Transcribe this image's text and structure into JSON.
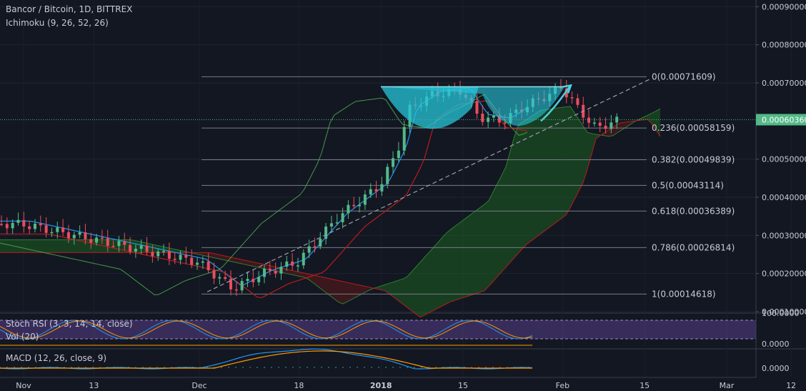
{
  "header": {
    "title": "Bancor / Bitcoin, 1D, BITTREX",
    "indicator": "Ichimoku (9, 26, 52, 26)"
  },
  "panes": {
    "stoch_label": "Stoch RSI (3, 3, 14, 14, close)",
    "vol_label": "Vol (20)",
    "macd_label": "MACD (12, 26, close, 9)"
  },
  "colors": {
    "background": "#131722",
    "up": "#53b987",
    "down": "#eb4d5c",
    "tenkan": "#2196f3",
    "kijun": "#b71c1c",
    "chikou": "#4caf50",
    "cloud_bull": "#1b5e20",
    "cloud_bear": "#5d1a1a",
    "cup": "#26c6da",
    "fib_line": "#787b86",
    "stoch_band": "#7e57c2"
  },
  "chart_data": [
    {
      "type": "candlestick",
      "title": "Bancor / Bitcoin, 1D, BITTREX",
      "y_axis": {
        "ticks": [
          "0.00090000",
          "0.00080000",
          "0.00070000",
          "0.00050000",
          "0.00040000",
          "0.00030000",
          "0.00020000",
          "0.00010000"
        ],
        "tick_values": [
          0.0009,
          0.0008,
          0.0007,
          0.0005,
          0.0004,
          0.0003,
          0.0002,
          0.0001
        ],
        "range": [
          0.0001,
          0.00091
        ],
        "current_price": "0.00060360"
      },
      "x_axis": {
        "ticks": [
          "Nov",
          "13",
          "Dec",
          "18",
          "2018",
          "15",
          "Feb",
          "15",
          "Mar",
          "12"
        ],
        "tick_dates": [
          "2017-11-01",
          "2017-11-13",
          "2017-12-01",
          "2017-12-18",
          "2018-01-01",
          "2018-01-15",
          "2018-02-01",
          "2018-02-15",
          "2018-03-01",
          "2018-03-12"
        ]
      },
      "price_series": {
        "dates": [
          "2017-11-01",
          "2017-11-13",
          "2017-12-01",
          "2017-12-07",
          "2017-12-12",
          "2017-12-18",
          "2017-12-25",
          "2018-01-01",
          "2018-01-04",
          "2018-01-06",
          "2018-01-10",
          "2018-01-15",
          "2018-01-18",
          "2018-01-22",
          "2018-01-26",
          "2018-01-30",
          "2018-02-01",
          "2018-02-04",
          "2018-02-07",
          "2018-02-10"
        ],
        "close": [
          0.00033,
          0.00029,
          0.00023,
          0.00016,
          0.0002,
          0.00023,
          0.00035,
          0.00043,
          0.00052,
          0.00063,
          0.00067,
          0.00068,
          0.00061,
          0.0006,
          0.00064,
          0.00067,
          0.00069,
          0.00063,
          0.00058,
          0.0006
        ]
      },
      "fibonacci": [
        {
          "level": "0",
          "value": "0.00071609"
        },
        {
          "level": "0.236",
          "value": "0.00058159"
        },
        {
          "level": "0.382",
          "value": "0.00049839"
        },
        {
          "level": "0.5",
          "value": "0.00043114"
        },
        {
          "level": "0.618",
          "value": "0.00036389"
        },
        {
          "level": "0.786",
          "value": "0.00026814"
        },
        {
          "level": "1",
          "value": "0.00014618"
        }
      ]
    },
    {
      "type": "line",
      "title": "Stoch RSI (3, 3, 14, 14, close)",
      "y_axis": {
        "ticks": [
          "100.0000",
          "0.0000"
        ],
        "tick_values": [
          100,
          0
        ]
      }
    },
    {
      "type": "line",
      "title": "MACD (12, 26, close, 9)",
      "y_axis": {
        "ticks": [
          "0.0000"
        ],
        "tick_values": [
          0
        ]
      }
    }
  ]
}
